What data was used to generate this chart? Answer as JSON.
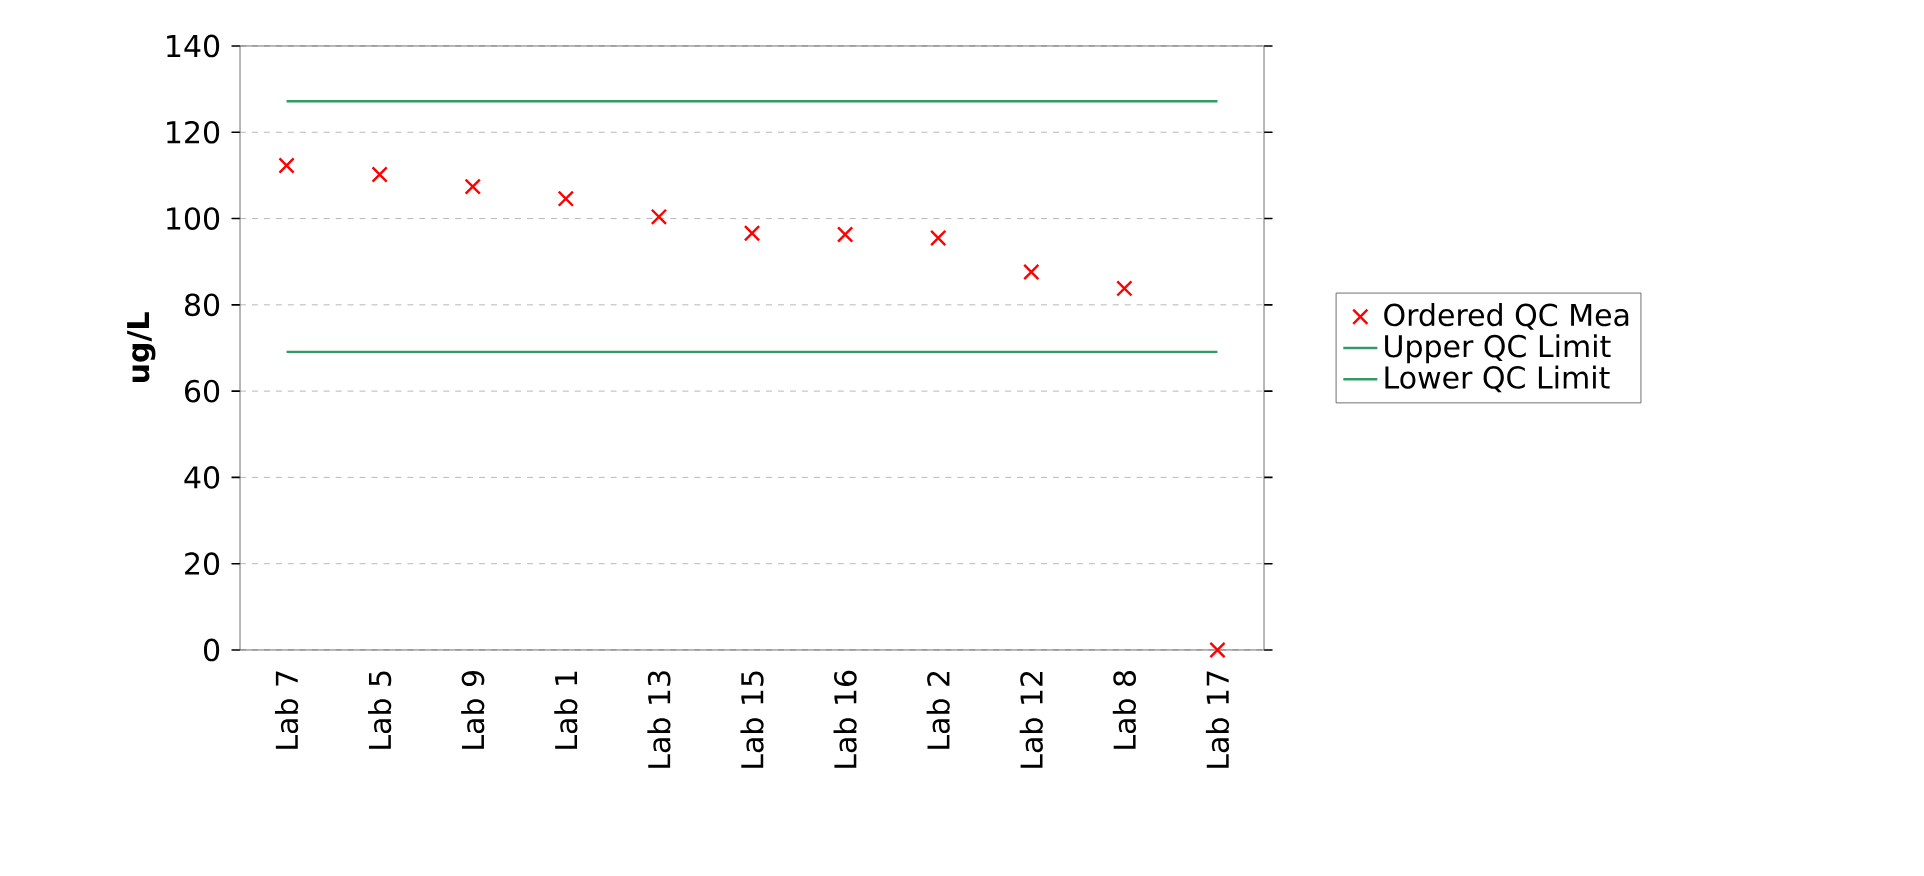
{
  "chart_data": {
    "type": "scatter",
    "ylabel": "ug/L",
    "categories": [
      "Lab 7",
      "Lab 5",
      "Lab 9",
      "Lab 1",
      "Lab 13",
      "Lab 15",
      "Lab 16",
      "Lab 2",
      "Lab 12",
      "Lab 8",
      "Lab 17"
    ],
    "series": [
      {
        "name": "Ordered QC Mea",
        "marker": "cross",
        "color": "#ff0000",
        "values": [
          112.3,
          110.2,
          107.4,
          104.6,
          100.4,
          96.6,
          96.3,
          95.5,
          87.6,
          83.8,
          0
        ]
      },
      {
        "name": "Upper QC Limit",
        "type": "line",
        "marker": "none",
        "line_style": "solid",
        "color": "#339966",
        "values": [
          127.2,
          127.2,
          127.2,
          127.2,
          127.2,
          127.2,
          127.2,
          127.2,
          127.2,
          127.2,
          127.2
        ]
      },
      {
        "name": "Lower QC Limit",
        "type": "line",
        "marker": "none",
        "line_style": "solid",
        "color": "#339966",
        "values": [
          69.1,
          69.1,
          69.1,
          69.1,
          69.1,
          69.1,
          69.1,
          69.1,
          69.1,
          69.1,
          69.1
        ]
      }
    ],
    "ylim": [
      0,
      140
    ],
    "yticks": [
      0,
      20,
      40,
      60,
      80,
      100,
      120,
      140
    ],
    "grid": "y",
    "legend": "right"
  }
}
